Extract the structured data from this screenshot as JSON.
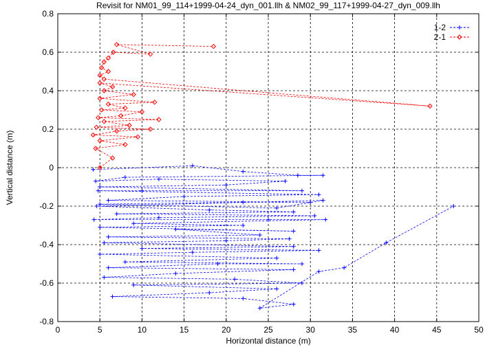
{
  "chart_data": {
    "type": "line",
    "title": "Revisit for NM01_99_114+1999-04-24_dyn_001.llh & NM02_99_117+1999-04-27_dyn_009.llh",
    "xlabel": "Horizontal distance (m)",
    "ylabel": "Vertical distance (m)",
    "xlim": [
      0,
      50
    ],
    "ylim": [
      -0.8,
      0.8
    ],
    "xticks": [
      0,
      5,
      10,
      15,
      20,
      25,
      30,
      35,
      40,
      45,
      50
    ],
    "yticks": [
      -0.8,
      -0.6,
      -0.4,
      -0.2,
      0,
      0.2,
      0.4,
      0.6,
      0.8
    ],
    "xtick_labels": [
      "0",
      "5",
      "10",
      "15",
      "20",
      "25",
      "30",
      "35",
      "40",
      "45",
      "50"
    ],
    "ytick_labels": [
      "-0.8",
      "-0.6",
      "-0.4",
      "-0.2",
      "0",
      "0.2",
      "0.4",
      "0.6",
      "0.8"
    ],
    "grid": true,
    "legend_position": "top-right",
    "series": [
      {
        "name": "1-2",
        "color": "#0000ff",
        "marker": "plus",
        "linestyle": "dashed",
        "points": [
          [
            4.2,
            -0.01
          ],
          [
            16.0,
            0.01
          ],
          [
            22.0,
            -0.02
          ],
          [
            28.5,
            -0.04
          ],
          [
            31.5,
            -0.04
          ],
          [
            8.0,
            -0.05
          ],
          [
            4.5,
            -0.07
          ],
          [
            12.0,
            -0.06
          ],
          [
            27.0,
            -0.07
          ],
          [
            20.0,
            -0.09
          ],
          [
            5.0,
            -0.1
          ],
          [
            29.0,
            -0.12
          ],
          [
            10.0,
            -0.12
          ],
          [
            4.8,
            -0.12
          ],
          [
            31.0,
            -0.14
          ],
          [
            15.0,
            -0.15
          ],
          [
            6.0,
            -0.17
          ],
          [
            30.0,
            -0.18
          ],
          [
            22.0,
            -0.18
          ],
          [
            5.0,
            -0.19
          ],
          [
            26.0,
            -0.21
          ],
          [
            31.5,
            -0.17
          ],
          [
            4.6,
            -0.2
          ],
          [
            18.0,
            -0.22
          ],
          [
            28.0,
            -0.23
          ],
          [
            7.0,
            -0.24
          ],
          [
            30.5,
            -0.25
          ],
          [
            12.0,
            -0.26
          ],
          [
            4.3,
            -0.27
          ],
          [
            25.0,
            -0.27
          ],
          [
            31.8,
            -0.27
          ],
          [
            9.0,
            -0.29
          ],
          [
            22.0,
            -0.3
          ],
          [
            5.0,
            -0.31
          ],
          [
            28.0,
            -0.33
          ],
          [
            14.0,
            -0.32
          ],
          [
            24.0,
            -0.35
          ],
          [
            6.0,
            -0.36
          ],
          [
            27.5,
            -0.37
          ],
          [
            20.0,
            -0.38
          ],
          [
            5.5,
            -0.39
          ],
          [
            28.0,
            -0.41
          ],
          [
            10.0,
            -0.42
          ],
          [
            31.0,
            -0.43
          ],
          [
            16.0,
            -0.44
          ],
          [
            5.0,
            -0.45
          ],
          [
            26.0,
            -0.47
          ],
          [
            8.0,
            -0.49
          ],
          [
            29.0,
            -0.5
          ],
          [
            19.0,
            -0.5
          ],
          [
            6.0,
            -0.52
          ],
          [
            28.0,
            -0.53
          ],
          [
            14.0,
            -0.55
          ],
          [
            5.5,
            -0.57
          ],
          [
            21.0,
            -0.58
          ],
          [
            29.0,
            -0.6
          ],
          [
            9.0,
            -0.61
          ],
          [
            26.0,
            -0.63
          ],
          [
            18.0,
            -0.65
          ],
          [
            6.5,
            -0.67
          ],
          [
            22.0,
            -0.68
          ],
          [
            28.0,
            -0.71
          ],
          [
            24.0,
            -0.73
          ],
          [
            31.0,
            -0.54
          ],
          [
            34.0,
            -0.52
          ],
          [
            39.0,
            -0.39
          ],
          [
            47.0,
            -0.2
          ]
        ]
      },
      {
        "name": "2-1",
        "color": "#ff0000",
        "marker": "diamond",
        "linestyle": "dashed",
        "points": [
          [
            5.0,
            0.0
          ],
          [
            6.5,
            0.05
          ],
          [
            4.5,
            0.1
          ],
          [
            8.0,
            0.12
          ],
          [
            5.0,
            0.14
          ],
          [
            9.5,
            0.16
          ],
          [
            4.2,
            0.17
          ],
          [
            7.0,
            0.19
          ],
          [
            11.0,
            0.2
          ],
          [
            4.6,
            0.21
          ],
          [
            8.5,
            0.22
          ],
          [
            5.5,
            0.24
          ],
          [
            12.0,
            0.25
          ],
          [
            4.8,
            0.26
          ],
          [
            7.5,
            0.27
          ],
          [
            10.0,
            0.29
          ],
          [
            5.2,
            0.3
          ],
          [
            8.0,
            0.31
          ],
          [
            6.0,
            0.33
          ],
          [
            11.5,
            0.34
          ],
          [
            5.0,
            0.36
          ],
          [
            9.0,
            0.38
          ],
          [
            5.5,
            0.4
          ],
          [
            6.5,
            0.42
          ],
          [
            5.0,
            0.44
          ],
          [
            44.2,
            0.32
          ],
          [
            5.5,
            0.46
          ],
          [
            5.0,
            0.48
          ],
          [
            6.0,
            0.5
          ],
          [
            5.2,
            0.52
          ],
          [
            5.5,
            0.55
          ],
          [
            6.0,
            0.57
          ],
          [
            6.6,
            0.6
          ],
          [
            11.0,
            0.59
          ],
          [
            7.0,
            0.64
          ],
          [
            18.5,
            0.63
          ]
        ]
      }
    ]
  }
}
